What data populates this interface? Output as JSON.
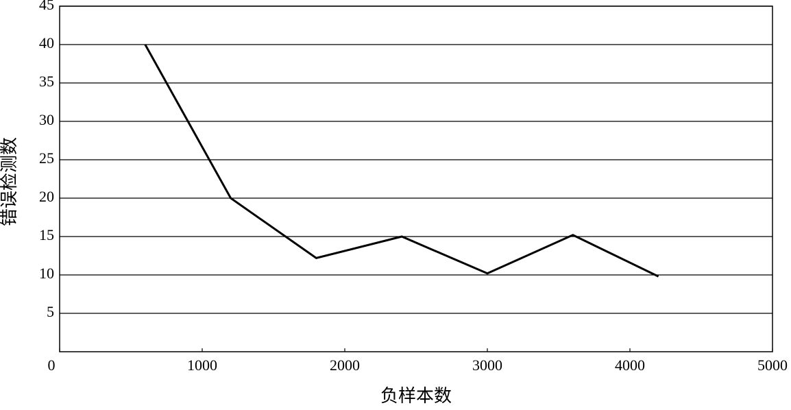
{
  "chart_data": {
    "type": "line",
    "x_label": "负样本数",
    "y_label": "错误检测数",
    "x": [
      600,
      1200,
      1800,
      2400,
      3000,
      3600,
      4200
    ],
    "series": [
      {
        "color": "#000000",
        "values": [
          40,
          20,
          12.2,
          15,
          10.2,
          15.2,
          9.8
        ]
      }
    ],
    "xlim": [
      0,
      5000
    ],
    "xticks": [
      0,
      1000,
      2000,
      3000,
      4000,
      5000
    ],
    "ylim": [
      0,
      45
    ],
    "yticks": [
      5,
      10,
      15,
      20,
      25,
      30,
      35,
      40,
      45
    ],
    "grid": true
  }
}
